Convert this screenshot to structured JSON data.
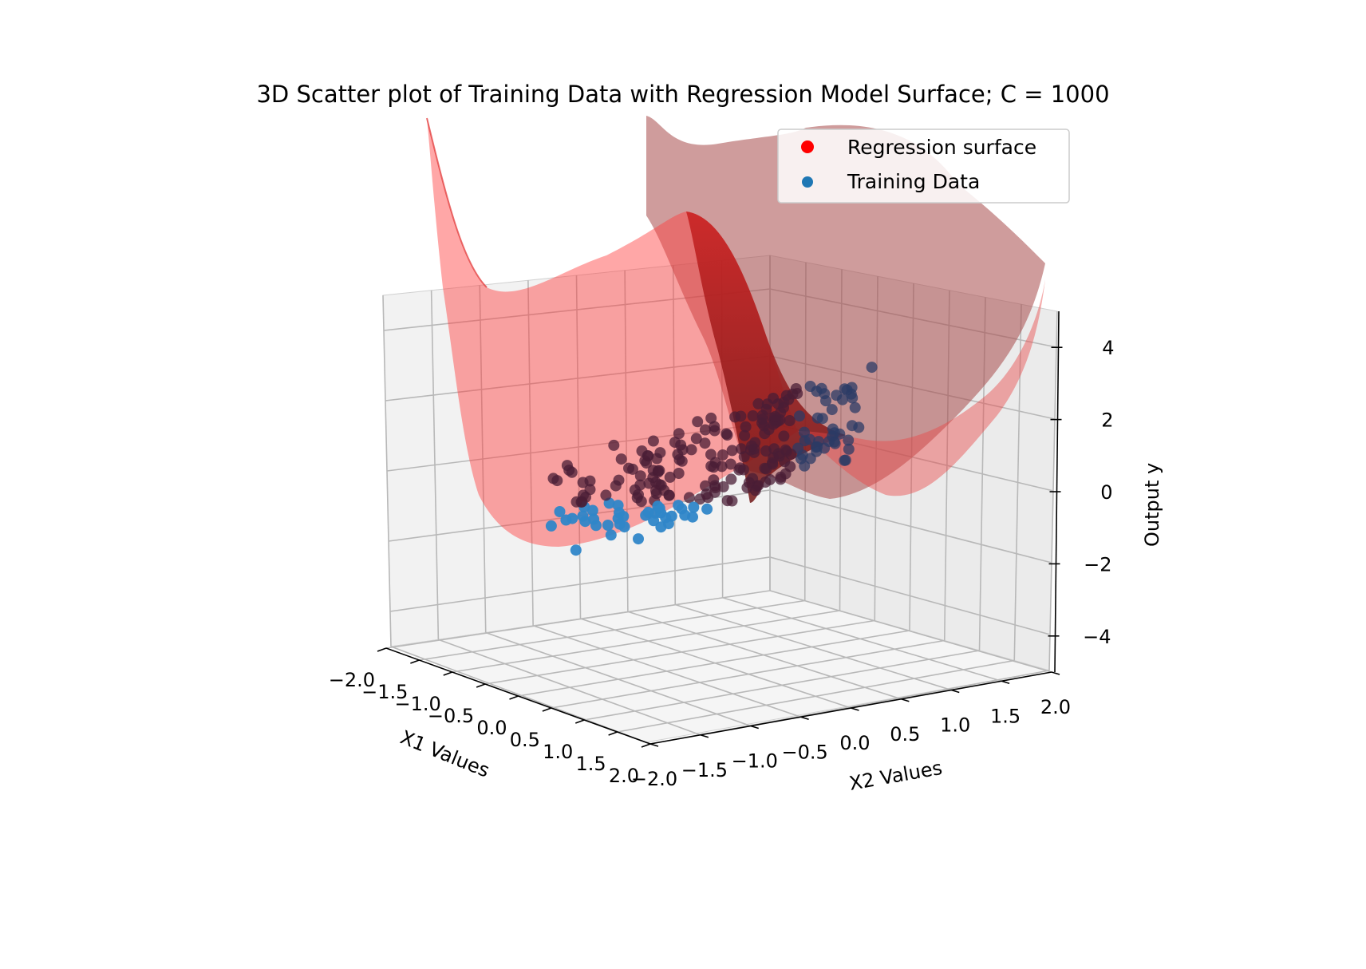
{
  "chart_data": {
    "type": "scatter",
    "title": "3D Scatter plot of Training Data with Regression Model Surface; C = 1000",
    "xlabel": "X1 Values",
    "ylabel": "X2 Values",
    "zlabel": "Output y",
    "x_ticks": [
      "−2.0",
      "−1.5",
      "−1.0",
      "−0.5",
      "0.0",
      "0.5",
      "1.0",
      "1.5",
      "2.0"
    ],
    "y_ticks": [
      "−2.0",
      "−1.5",
      "−1.0",
      "−0.5",
      "0.0",
      "0.5",
      "1.0",
      "1.5",
      "2.0"
    ],
    "z_ticks": [
      "−4",
      "−2",
      "0",
      "2",
      "4"
    ],
    "xlim": [
      -2,
      2
    ],
    "ylim": [
      -2,
      2
    ],
    "zlim": [
      -5,
      5
    ],
    "grid": true,
    "legend": {
      "placement": "top-right",
      "entries": [
        {
          "label": "Regression surface",
          "color": "#ff0000"
        },
        {
          "label": "Training Data",
          "color": "#1f77b4"
        }
      ]
    },
    "series": [
      {
        "name": "Regression surface",
        "kind": "surface",
        "color": "#ff0000",
        "alpha": 0.45
      },
      {
        "name": "Training Data",
        "kind": "scatter",
        "color": "#1f77b4"
      }
    ]
  }
}
